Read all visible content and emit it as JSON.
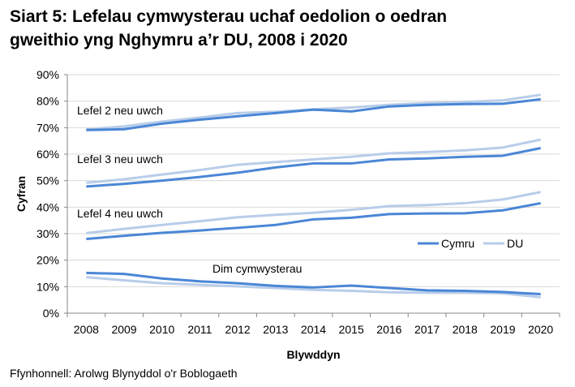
{
  "title_line1": "Siart 5: Lefelau cymwysterau uchaf oedolion o oedran",
  "title_line2": "gweithio yng Nghymru a’r DU, 2008 i 2020",
  "source": "Ffynhonnell: Arolwg Blynyddol o'r Boblogaeth",
  "colors": {
    "Cymru": "#4a86d6",
    "DU": "#b8cde9",
    "grid": "#d9d9d9"
  },
  "chart_data": {
    "type": "line",
    "title": "Siart 5: Lefelau cymwysterau uchaf oedolion o oedran gweithio yng Nghymru a’r DU, 2008 i 2020",
    "xlabel": "Blywddyn",
    "ylabel": "Cyfran",
    "ylim": [
      0,
      90
    ],
    "yticks": [
      "0%",
      "10%",
      "20%",
      "30%",
      "40%",
      "50%",
      "60%",
      "70%",
      "80%",
      "90%"
    ],
    "grid": true,
    "legend": "right",
    "legend_entries": [
      "Cymru",
      "DU"
    ],
    "x": [
      "2008",
      "2009",
      "2010",
      "2011",
      "2012",
      "2013",
      "2014",
      "2015",
      "2016",
      "2017",
      "2018",
      "2019",
      "2020"
    ],
    "groups": [
      {
        "label": "Lefel 2 neu uwch",
        "series": [
          {
            "name": "Cymru",
            "values": [
              69.1,
              69.4,
              71.5,
              73.0,
              74.3,
              75.5,
              76.8,
              76.1,
              78.0,
              78.6,
              78.9,
              79.0,
              80.7
            ]
          },
          {
            "name": "DU",
            "values": [
              69.3,
              70.5,
              72.3,
              73.8,
              75.5,
              76.0,
              76.9,
              77.6,
              78.6,
              79.3,
              79.7,
              80.3,
              82.4
            ]
          }
        ]
      },
      {
        "label": "Lefel 3 neu uwch",
        "series": [
          {
            "name": "Cymru",
            "values": [
              47.8,
              48.8,
              50.0,
              51.4,
              53.0,
              55.0,
              56.5,
              56.5,
              58.0,
              58.4,
              59.0,
              59.4,
              62.3
            ]
          },
          {
            "name": "DU",
            "values": [
              49.2,
              50.5,
              52.3,
              54.0,
              56.0,
              57.0,
              58.0,
              59.0,
              60.3,
              60.8,
              61.4,
              62.5,
              65.5
            ]
          }
        ]
      },
      {
        "label": "Lefel 4 neu uwch",
        "series": [
          {
            "name": "Cymru",
            "values": [
              28.0,
              29.2,
              30.3,
              31.2,
              32.2,
              33.3,
              35.4,
              36.0,
              37.4,
              37.6,
              37.7,
              38.8,
              41.5
            ]
          },
          {
            "name": "DU",
            "values": [
              30.2,
              31.8,
              33.3,
              34.7,
              36.2,
              37.1,
              37.9,
              39.0,
              40.4,
              40.8,
              41.5,
              42.9,
              45.7
            ]
          }
        ]
      },
      {
        "label": "Dim cymwysterau",
        "series": [
          {
            "name": "Cymru",
            "values": [
              15.2,
              14.8,
              13.1,
              12.0,
              11.3,
              10.3,
              9.7,
              10.4,
              9.5,
              8.6,
              8.4,
              8.0,
              7.2
            ]
          },
          {
            "name": "DU",
            "values": [
              13.6,
              12.4,
              11.3,
              10.7,
              10.1,
              9.5,
              8.8,
              8.4,
              7.9,
              7.7,
              7.7,
              7.5,
              6.0
            ]
          }
        ]
      }
    ]
  }
}
